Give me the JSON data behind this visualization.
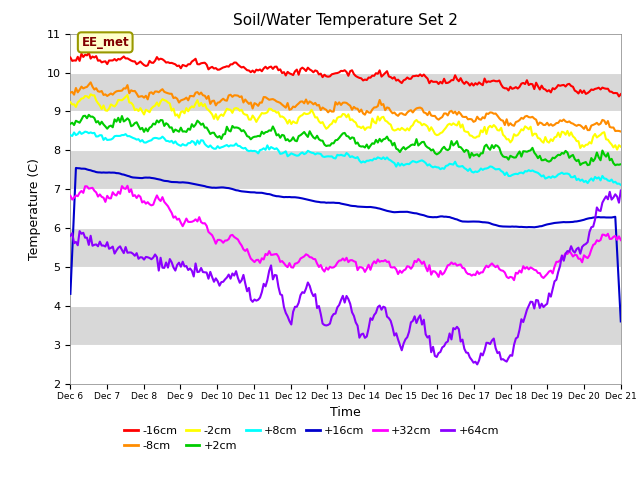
{
  "title": "Soil/Water Temperature Set 2",
  "xlabel": "Time",
  "ylabel": "Temperature (C)",
  "ylim": [
    2.0,
    11.0
  ],
  "yticks": [
    2.0,
    3.0,
    4.0,
    5.0,
    6.0,
    7.0,
    8.0,
    9.0,
    10.0,
    11.0
  ],
  "x_tick_labels": [
    "Dec 6",
    "Dec 7",
    "Dec 8",
    "Dec 9",
    "Dec 10",
    "Dec 11",
    "Dec 12",
    "Dec 13",
    "Dec 14",
    "Dec 15",
    "Dec 16",
    "Dec 17",
    "Dec 18",
    "Dec 19",
    "Dec 20",
    "Dec 21"
  ],
  "annotation_text": "EE_met",
  "annotation_box_color": "#FFFFCC",
  "annotation_text_color": "#800000",
  "bg_light": "#EBEBEB",
  "bg_dark": "#D8D8D8",
  "series": [
    {
      "label": "-16cm",
      "color": "#FF0000"
    },
    {
      "label": "-8cm",
      "color": "#FF8C00"
    },
    {
      "label": "-2cm",
      "color": "#FFFF00"
    },
    {
      "label": "+2cm",
      "color": "#00CC00"
    },
    {
      "label": "+8cm",
      "color": "#00FFFF"
    },
    {
      "label": "+16cm",
      "color": "#0000CC"
    },
    {
      "label": "+32cm",
      "color": "#FF00FF"
    },
    {
      "label": "+64cm",
      "color": "#8B00FF"
    }
  ],
  "linewidth": 1.5
}
